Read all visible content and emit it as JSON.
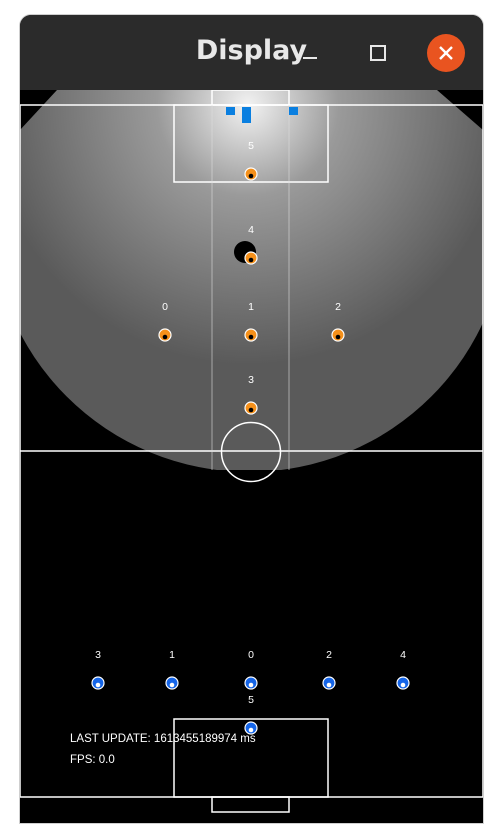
{
  "window": {
    "title": "Display"
  },
  "titlebar_icons": [
    "minimize-icon",
    "maximize-icon",
    "close-icon"
  ],
  "colors": {
    "close_button": "#e95420",
    "titlebar": "#2b2b2b",
    "field_background": "#000000",
    "field_lines": "#ffffff",
    "opponent_team": "#f5901a",
    "own_team": "#1565e8",
    "markers": "#0a7fe0"
  },
  "opponents": [
    {
      "label": "5"
    },
    {
      "label": "4"
    },
    {
      "label": "0"
    },
    {
      "label": "1"
    },
    {
      "label": "2"
    },
    {
      "label": "3"
    }
  ],
  "teammates": [
    {
      "label": "3"
    },
    {
      "label": "1"
    },
    {
      "label": "0"
    },
    {
      "label": "2"
    },
    {
      "label": "4"
    },
    {
      "label": "5"
    }
  ],
  "status": {
    "last_update": "LAST UPDATE: 1613455189974 ms",
    "fps": "FPS: 0.0"
  }
}
